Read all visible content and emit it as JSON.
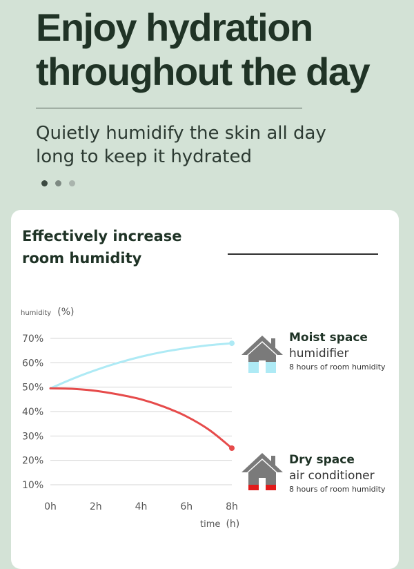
{
  "headline": {
    "line1": "Enjoy hydration",
    "line2": "throughout the day"
  },
  "subtitle": {
    "line1": "Quietly humidify the skin all day",
    "line2": "long to keep it hydrated"
  },
  "card": {
    "title_line1": "Effectively increase",
    "title_line2": "room humidity"
  },
  "legend": {
    "moist": {
      "title": "Moist space",
      "name": "humidifier",
      "note": "8 hours of room humidity",
      "icon": "house-icon-blue"
    },
    "dry": {
      "title": "Dry space",
      "name": "air conditioner",
      "note": "8 hours of room humidity",
      "icon": "house-icon-red"
    }
  },
  "colors": {
    "humidifier": "#aeeaf5",
    "air_conditioner": "#e64b4b",
    "grid": "#d4d4d4",
    "house": "#7a7a7a"
  },
  "chart_data": {
    "type": "line",
    "ylabel": "humidity",
    "ylabel_unit": "(%)",
    "xlabel": "time",
    "xlabel_unit": "(h)",
    "x": [
      0,
      1,
      2,
      3,
      4,
      5,
      6,
      7,
      8
    ],
    "xticks": [
      "0h",
      "2h",
      "4h",
      "6h",
      "8h"
    ],
    "yticks": [
      "70%",
      "60%",
      "50%",
      "40%",
      "30%",
      "20%",
      "10%"
    ],
    "ylim": [
      10,
      70
    ],
    "xlim": [
      0,
      8
    ],
    "grid": true,
    "series": [
      {
        "name": "humidifier",
        "color": "#aeeaf5",
        "values": [
          49.5,
          53.5,
          57,
          60,
          62.5,
          64.5,
          66,
          67.2,
          68
        ]
      },
      {
        "name": "air conditioner",
        "color": "#e64b4b",
        "values": [
          49.5,
          49.3,
          48.5,
          47,
          45,
          42,
          38,
          32.5,
          25
        ]
      }
    ]
  }
}
